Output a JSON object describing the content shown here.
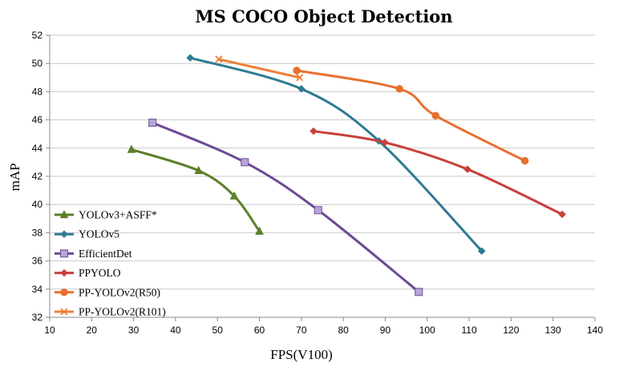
{
  "chart_data": {
    "type": "line",
    "title": "MS COCO Object Detection",
    "xlabel": "FPS(V100)",
    "ylabel": "mAP",
    "xlim": [
      10,
      140
    ],
    "ylim": [
      32,
      52
    ],
    "xticks": [
      "10",
      "20",
      "30",
      "40",
      "50",
      "60",
      "70",
      "80",
      "90",
      "100",
      "110",
      "120",
      "130",
      "140"
    ],
    "yticks": [
      "32",
      "34",
      "36",
      "38",
      "40",
      "42",
      "44",
      "46",
      "48",
      "50",
      "52"
    ],
    "grid": "horizontal",
    "legend_position": "bottom-left",
    "series": [
      {
        "name": "YOLOv3+ASFF*",
        "color": "#5c7e2a",
        "marker": "triangle",
        "x": [
          29.5,
          45.5,
          54,
          60
        ],
        "y": [
          43.9,
          42.4,
          40.6,
          38.1
        ]
      },
      {
        "name": "YOLOv5",
        "color": "#2f7a93",
        "marker": "diamond",
        "x": [
          43.5,
          70,
          88.5,
          113
        ],
        "y": [
          50.4,
          48.2,
          44.5,
          36.7
        ]
      },
      {
        "name": "EfficientDet",
        "color": "#6b4b94",
        "marker": "square",
        "x": [
          34.5,
          56.5,
          74,
          98
        ],
        "y": [
          45.8,
          43.0,
          39.6,
          33.8
        ]
      },
      {
        "name": "PPYOLO",
        "color": "#c8413a",
        "marker": "diamond",
        "x": [
          72.9,
          89.9,
          109.6,
          132.2
        ],
        "y": [
          45.2,
          44.4,
          42.5,
          39.3
        ]
      },
      {
        "name": "PP-YOLOv2(R50)",
        "color": "#e8702e",
        "marker": "circle",
        "x": [
          68.9,
          93.4,
          102,
          123.3
        ],
        "y": [
          49.5,
          48.2,
          46.3,
          43.1
        ]
      },
      {
        "name": "PP-YOLOv2(R101)",
        "color": "#ee7f3a",
        "marker": "x",
        "x": [
          50.3,
          69.6
        ],
        "y": [
          50.3,
          49.0
        ]
      }
    ]
  }
}
